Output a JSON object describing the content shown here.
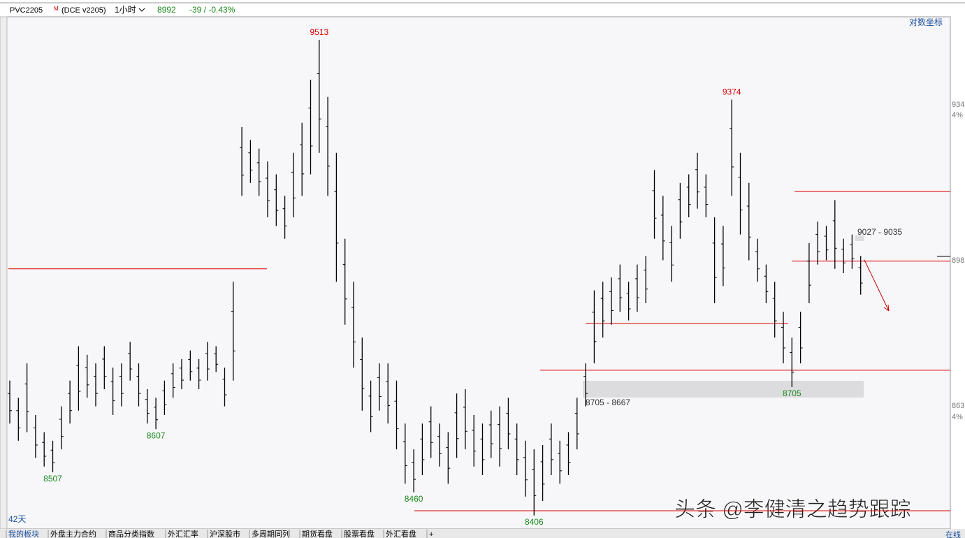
{
  "header": {
    "symbol": "PVC2205",
    "mark": "M",
    "contract": "(DCE v2205)",
    "period": "1小时",
    "price": "8992",
    "change": "-39 / -0.43%"
  },
  "log_scale_button": "对数坐标",
  "right_axis": [
    "934",
    "4%",
    "898",
    "863",
    "4%"
  ],
  "span_label": "42天",
  "tabs": [
    "我的板块",
    "外盘主力合约",
    "商品分类指数",
    "外汇汇率",
    "沪深股市",
    "多周期同列",
    "期货看盘",
    "股票看盘",
    "外汇看盘",
    "+"
  ],
  "watermark": "头条 @李健清之趋势跟踪",
  "status": "在线",
  "chart_data": {
    "type": "ohlc",
    "high": [
      8720,
      8680,
      8760,
      8640,
      8600,
      8580,
      8660,
      8720,
      8800,
      8780,
      8760,
      8800,
      8750,
      8760,
      8810,
      8760,
      8700,
      8680,
      8720,
      8760,
      8770,
      8790,
      8770,
      8810,
      8800,
      8750,
      8950,
      9310,
      9280,
      9260,
      9230,
      9200,
      9150,
      9250,
      9320,
      9420,
      9513,
      9380,
      9250,
      9050,
      8950,
      8820,
      8720,
      8760,
      8760,
      8720,
      8620,
      8560,
      8620,
      8660,
      8620,
      8600,
      8690,
      8700,
      8640,
      8620,
      8650,
      8660,
      8680,
      8620,
      8580,
      8560,
      8570,
      8620,
      8580,
      8600,
      8680,
      8760,
      8930,
      8950,
      8960,
      8990,
      8950,
      8990,
      9010,
      9210,
      9150,
      9080,
      9180,
      9200,
      9250,
      9200,
      9100,
      9080,
      9374,
      9250,
      9180,
      9050,
      8990,
      8950,
      8880,
      8820,
      8880,
      9040,
      9090,
      9080,
      9140,
      9050,
      9060,
      9010
    ],
    "low": [
      8620,
      8580,
      8600,
      8540,
      8520,
      8507,
      8560,
      8620,
      8650,
      8680,
      8660,
      8700,
      8640,
      8660,
      8720,
      8660,
      8620,
      8607,
      8640,
      8680,
      8700,
      8720,
      8700,
      8720,
      8740,
      8660,
      8720,
      9150,
      9180,
      9150,
      9100,
      9080,
      9050,
      9100,
      9150,
      9200,
      9250,
      9150,
      8950,
      8850,
      8750,
      8650,
      8600,
      8650,
      8620,
      8560,
      8480,
      8460,
      8500,
      8540,
      8520,
      8480,
      8540,
      8560,
      8520,
      8500,
      8540,
      8520,
      8560,
      8500,
      8450,
      8406,
      8440,
      8500,
      8480,
      8500,
      8560,
      8660,
      8760,
      8820,
      8850,
      8880,
      8860,
      8880,
      8900,
      9050,
      9000,
      8950,
      9050,
      9100,
      9120,
      9100,
      8900,
      8940,
      9150,
      9060,
      9000,
      8950,
      8900,
      8820,
      8760,
      8705,
      8760,
      8900,
      8990,
      9000,
      8980,
      8970,
      8980,
      8920
    ],
    "levels": [
      8980,
      9160,
      8998,
      8853,
      8744,
      8417
    ],
    "annotations": [
      9513,
      9374,
      8507,
      8607,
      8460,
      8406,
      8705
    ],
    "zones": [
      "8705 - 8667",
      "9027 - 9035"
    ]
  }
}
